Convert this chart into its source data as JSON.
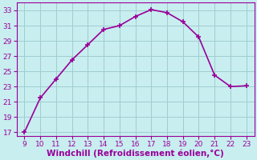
{
  "x": [
    9,
    10,
    11,
    12,
    13,
    14,
    15,
    16,
    17,
    18,
    19,
    20,
    21,
    22,
    23
  ],
  "y": [
    17,
    21.5,
    24,
    26.5,
    28.5,
    30.5,
    31,
    32.2,
    33.1,
    32.7,
    31.5,
    29.5,
    24.5,
    23.0,
    23.1
  ],
  "line_color": "#990099",
  "marker": "+",
  "marker_size": 5,
  "marker_linewidth": 1.2,
  "line_width": 1.2,
  "xlabel": "Windchill (Refroidissement éolien,°C)",
  "xlabel_color": "#990099",
  "background_color": "#c8eef0",
  "grid_color": "#a0ccd0",
  "tick_color": "#990099",
  "spine_color": "#990099",
  "xlim": [
    8.5,
    23.5
  ],
  "ylim": [
    16.5,
    34
  ],
  "xticks": [
    9,
    10,
    11,
    12,
    13,
    14,
    15,
    16,
    17,
    18,
    19,
    20,
    21,
    22,
    23
  ],
  "yticks": [
    17,
    19,
    21,
    23,
    25,
    27,
    29,
    31,
    33
  ],
  "xlabel_fontsize": 7.5,
  "tick_fontsize": 6.5
}
